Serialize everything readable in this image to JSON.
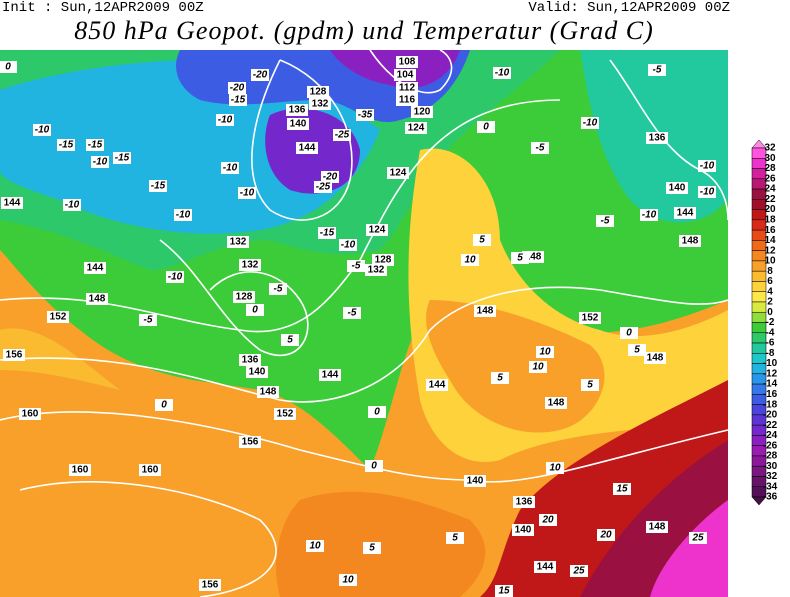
{
  "header": {
    "init": "Init : Sun,12APR2009 00Z",
    "valid": "Valid: Sun,12APR2009 00Z",
    "title": "850 hPa Geopot. (gpdm) und Temperatur (Grad C)"
  },
  "colorbar": {
    "labels": [
      32,
      30,
      28,
      26,
      24,
      22,
      20,
      18,
      16,
      14,
      12,
      10,
      8,
      6,
      4,
      2,
      0,
      -2,
      -4,
      -6,
      -8,
      -10,
      -12,
      -14,
      -16,
      -18,
      -20,
      -22,
      -24,
      -26,
      -28,
      -30,
      -32,
      -34,
      -36
    ],
    "colors": [
      "#ff88e8",
      "#ff55dd",
      "#ee33cc",
      "#d4209e",
      "#b81870",
      "#9a1040",
      "#a0102a",
      "#c01818",
      "#d82a1a",
      "#e84a18",
      "#f06a18",
      "#f48820",
      "#f8a02a",
      "#fbbb30",
      "#fdd23a",
      "#fce84a",
      "#d8ea40",
      "#8fdc3a",
      "#3ccc3a",
      "#2cc86a",
      "#22c89e",
      "#1ec8c8",
      "#22b4e0",
      "#2a96ea",
      "#3478ea",
      "#3c5ce4",
      "#4a44dc",
      "#5c34d4",
      "#7428cc",
      "#8a20c0",
      "#9a1cb0",
      "#8a1898",
      "#781880",
      "#661468",
      "#541058",
      "#441048"
    ]
  },
  "geopotential_labels": [
    108,
    104,
    112,
    116,
    120,
    124,
    128,
    132,
    136,
    140,
    144,
    124,
    124,
    128,
    132,
    132,
    132,
    128,
    136,
    140,
    144,
    148,
    152,
    156,
    160,
    160,
    160,
    156,
    144,
    144,
    148,
    152,
    156,
    148,
    144,
    148,
    152,
    148,
    148,
    136,
    140,
    144,
    148,
    140,
    136,
    140,
    144,
    148
  ],
  "temperature_labels": [
    -10,
    -15,
    -15,
    -10,
    -15,
    -10,
    -20,
    -15,
    -20,
    -10,
    -10,
    -15,
    -10,
    -10,
    -10,
    -5,
    -5,
    0,
    5,
    -5,
    -5,
    -10,
    -15,
    -25,
    -35,
    -20,
    -25,
    -10,
    -10,
    -5,
    -5,
    -10,
    -10,
    -10,
    -5,
    0,
    5,
    10,
    5,
    0,
    5,
    10,
    10,
    5,
    5,
    0,
    0,
    0,
    0,
    15,
    20,
    20,
    25,
    25,
    15,
    10,
    10,
    5,
    5,
    10
  ]
}
